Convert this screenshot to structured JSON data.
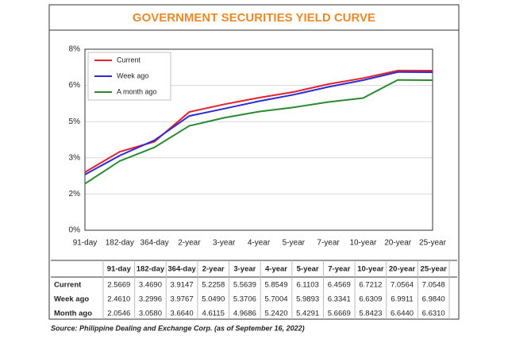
{
  "chart_data": {
    "type": "line",
    "title": "GOVERNMENT SECURITIES YIELD CURVE",
    "source": "Source: Philippine Dealing and Exchange Corp. (as of September 16, 2022)",
    "categories": [
      "91-day",
      "182-day",
      "364-day",
      "2-year",
      "3-year",
      "4-year",
      "5-year",
      "7-year",
      "10-year",
      "20-year",
      "25-year"
    ],
    "series": [
      {
        "name": "Current",
        "color": "#e3212b",
        "values": [
          2.5669,
          3.469,
          3.9147,
          5.2258,
          5.5639,
          5.8549,
          6.1103,
          6.4569,
          6.7212,
          7.0564,
          7.0548
        ],
        "value_labels": [
          "2.5669",
          "3.4690",
          "3.9147",
          "5.2258",
          "5.5639",
          "5.8549",
          "6.1103",
          "6.4569",
          "6.7212",
          "7.0564",
          "7.0548"
        ]
      },
      {
        "name": "Week ago",
        "color": "#2b2bd6",
        "values": [
          2.461,
          3.2996,
          3.9767,
          5.049,
          5.3706,
          5.7004,
          5.9893,
          6.3341,
          6.6309,
          6.9911,
          6.984
        ],
        "value_labels": [
          "2.4610",
          "3.2996",
          "3.9767",
          "5.0490",
          "5.3706",
          "5.7004",
          "5.9893",
          "6.3341",
          "6.6309",
          "6.9911",
          "6.9840"
        ]
      },
      {
        "name": "A month ago",
        "table_name": "Month ago",
        "color": "#2a8a2f",
        "values": [
          2.0546,
          3.058,
          3.664,
          4.6115,
          4.9686,
          5.242,
          5.4291,
          5.6669,
          5.8423,
          6.644,
          6.631
        ],
        "value_labels": [
          "2.0546",
          "3.0580",
          "3.6640",
          "4.6115",
          "4.9686",
          "5.2420",
          "5.4291",
          "5.6669",
          "5.8423",
          "6.6440",
          "6.6310"
        ]
      }
    ],
    "ylim": [
      0,
      8
    ],
    "yticks": [
      {
        "value": 0,
        "label": "0%"
      },
      {
        "value": 1.6,
        "label": "2%"
      },
      {
        "value": 3.2,
        "label": "3%"
      },
      {
        "value": 4.8,
        "label": "5%"
      },
      {
        "value": 6.4,
        "label": "6%"
      },
      {
        "value": 8,
        "label": "8%"
      }
    ],
    "grid": true,
    "legend": "upper left"
  }
}
